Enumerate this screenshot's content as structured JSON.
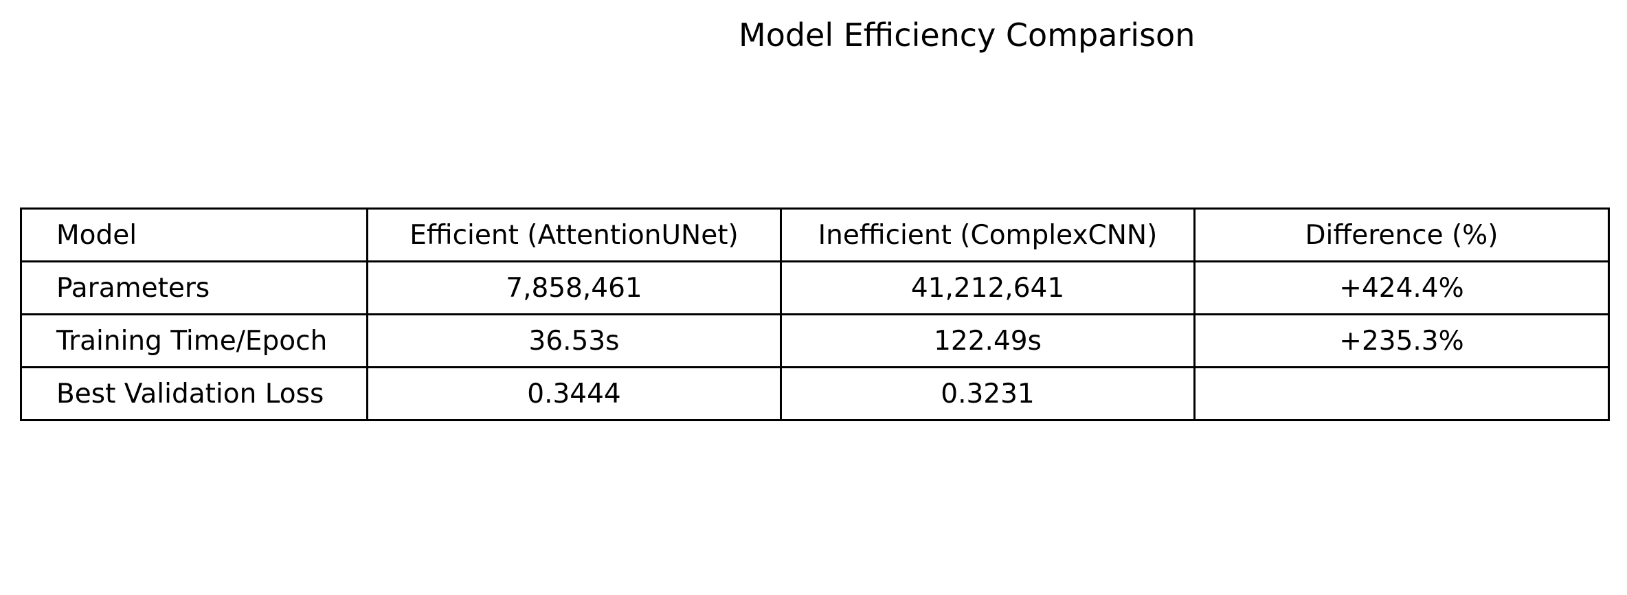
{
  "chart_data": {
    "type": "table",
    "title": "Model Efficiency Comparison",
    "columns": [
      "Model",
      "Efficient (AttentionUNet)",
      "Inefficient (ComplexCNN)",
      "Difference (%)"
    ],
    "rows": [
      [
        "Parameters",
        "7,858,461",
        "41,212,641",
        "+424.4%"
      ],
      [
        "Training Time/Epoch",
        "36.53s",
        "122.49s",
        "+235.3%"
      ],
      [
        "Best Validation Loss",
        "0.3444",
        "0.3231",
        ""
      ]
    ]
  }
}
